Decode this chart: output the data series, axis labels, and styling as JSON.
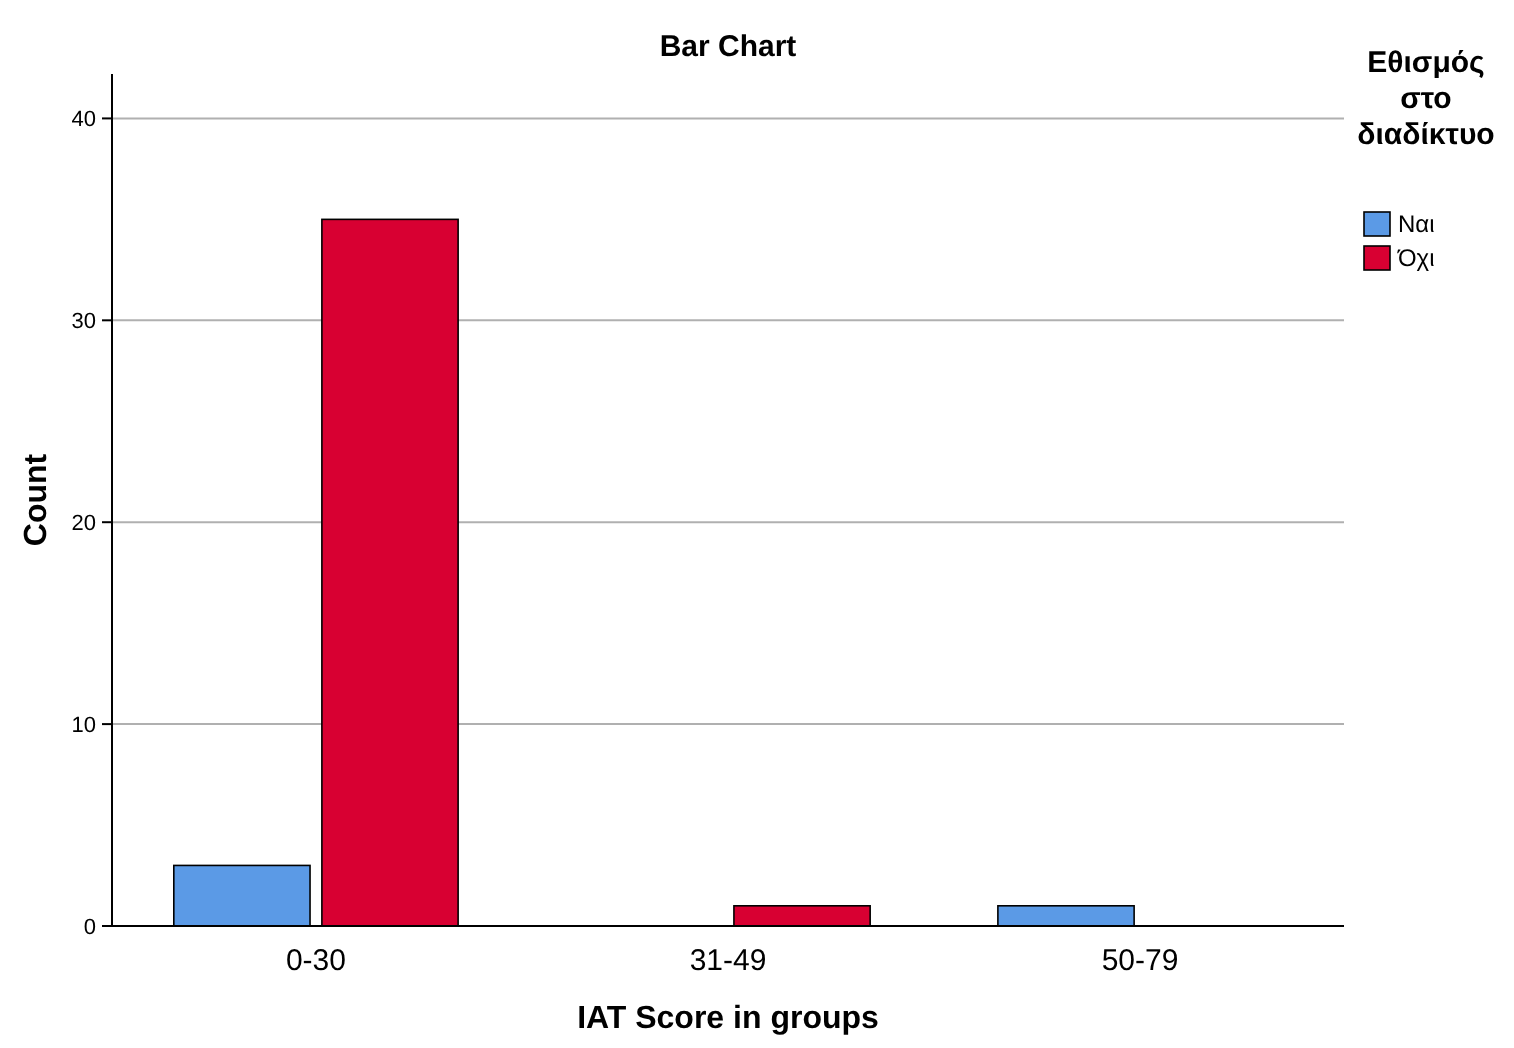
{
  "chart_data": {
    "type": "bar",
    "title": "Bar Chart",
    "xlabel": "IAT Score in groups",
    "ylabel": "Count",
    "legend_title": "Εθισμός στο διαδίκτυο",
    "categories": [
      "0-30",
      "31-49",
      "50-79"
    ],
    "series": [
      {
        "name": "Ναι",
        "color": "#5b9ae6",
        "values": [
          3,
          null,
          1
        ]
      },
      {
        "name": "Όχι",
        "color": "#d80032",
        "values": [
          35,
          1,
          null
        ]
      }
    ],
    "ylim": [
      0,
      42.2
    ],
    "yticks": [
      0,
      10,
      20,
      30,
      40
    ],
    "grid": "y",
    "legend": "top right"
  }
}
